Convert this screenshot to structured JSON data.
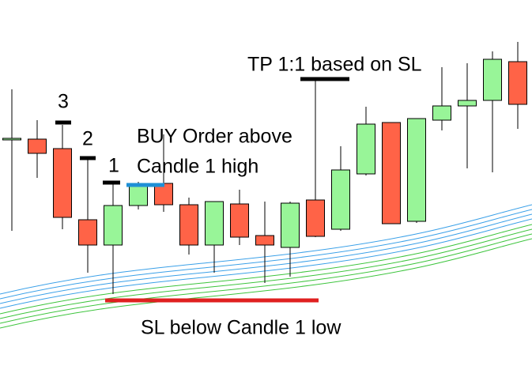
{
  "chart_data": {
    "type": "candlestick",
    "ylim": [
      0,
      482
    ],
    "up_color": "#98f598",
    "down_color": "#ff6347",
    "annotations": [
      "3",
      "2",
      "1",
      "BUY Order above",
      "Candle 1 high",
      "TP 1:1 based on SL",
      "SL below Candle 1 low"
    ],
    "open": [
      305,
      306,
      294,
      204,
      172,
      222,
      250,
      223,
      172,
      224,
      184,
      169,
      229,
      192,
      262,
      327,
      202,
      330,
      348,
      355,
      404
    ],
    "high": [
      369,
      330,
      324,
      282,
      252,
      252,
      312,
      232,
      227,
      242,
      227,
      227,
      383,
      297,
      347,
      327,
      332,
      397,
      402,
      417,
      429
    ],
    "low": [
      190,
      257,
      192,
      137,
      110,
      217,
      214,
      160,
      137,
      172,
      124,
      132,
      182,
      190,
      260,
      199,
      200,
      317,
      269,
      264,
      319
    ],
    "close": [
      307,
      288,
      207,
      172,
      222,
      250,
      223,
      172,
      227,
      182,
      172,
      225,
      183,
      267,
      325,
      199,
      332,
      348,
      355,
      407,
      350
    ]
  }
}
